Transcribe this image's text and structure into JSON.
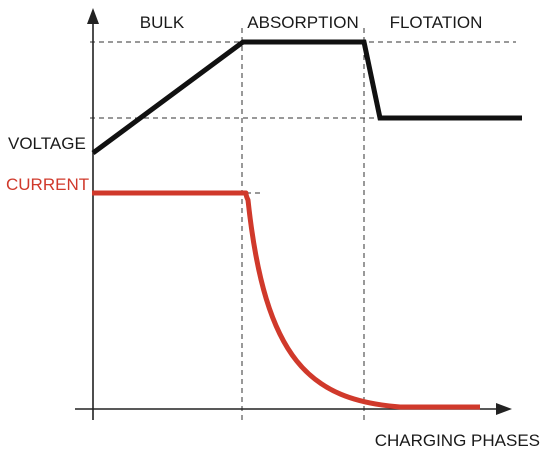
{
  "phases": {
    "bulk": "BULK",
    "absorption": "ABSORPTION",
    "flotation": "FLOTATION"
  },
  "series": {
    "voltage": "VOLTAGE",
    "current": "CURRENT"
  },
  "axis": {
    "x_label": "CHARGING PHASES"
  },
  "colors": {
    "voltage": "#111111",
    "current": "#d0392b"
  }
}
